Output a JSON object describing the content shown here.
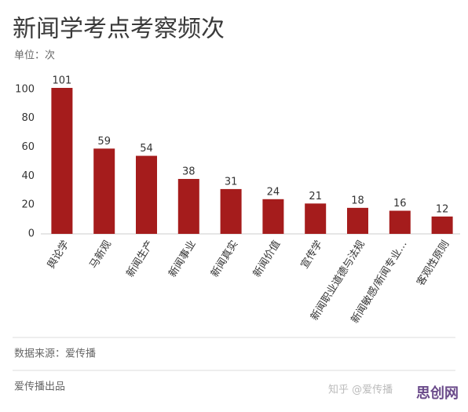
{
  "chart_data": {
    "type": "bar",
    "title": "新闻学考点考察频次",
    "subtitle": "单位：次",
    "categories": [
      "舆论学",
      "马新观",
      "新闻生产",
      "新闻事业",
      "新闻真实",
      "新闻价值",
      "宣传学",
      "新闻职业道德与法规",
      "新闻敏感/新闻专业…",
      "客观性原则"
    ],
    "values": [
      101,
      59,
      54,
      38,
      31,
      24,
      21,
      18,
      16,
      12
    ],
    "color": "#a51c1c",
    "ylim": [
      0,
      101
    ],
    "yticks": [
      0,
      20,
      40,
      60,
      80,
      100
    ],
    "grid": false,
    "source": "数据来源：爱传播",
    "footer": "爱传播出品",
    "watermarks": [
      "知乎 @爱传播",
      "思创网"
    ]
  }
}
